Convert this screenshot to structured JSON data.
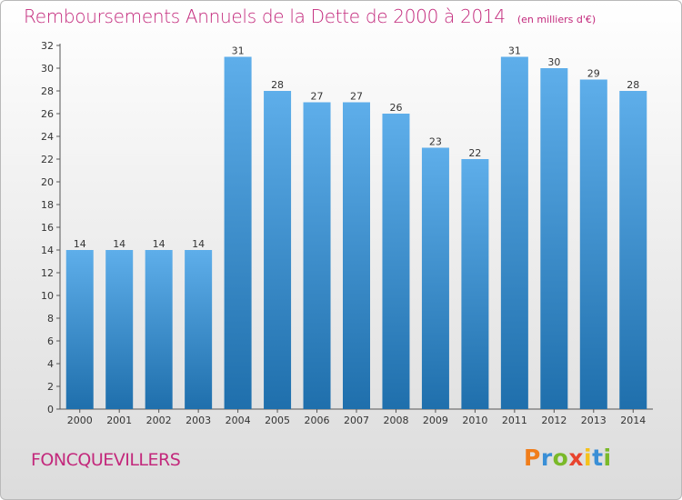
{
  "title": "Remboursements Annuels de la Dette de 2000 à 2014",
  "subtitle": "(en milliers d'€)",
  "commune": "FONCQUEVILLERS",
  "logo": {
    "letters": [
      "P",
      "r",
      "o",
      "x",
      "i",
      "t",
      "i"
    ],
    "colors": [
      "#f07d1a",
      "#3a8fd6",
      "#7ab929",
      "#e8442e",
      "#f5c21a",
      "#3a8fd6",
      "#7ab929"
    ]
  },
  "colors": {
    "bar_light": "#5eaeea",
    "bar_dark": "#1f6fac",
    "accent": "#c3297c"
  },
  "chart_data": {
    "type": "bar",
    "categories": [
      "2000",
      "2001",
      "2002",
      "2003",
      "2004",
      "2005",
      "2006",
      "2007",
      "2008",
      "2009",
      "2010",
      "2011",
      "2012",
      "2013",
      "2014"
    ],
    "values": [
      14,
      14,
      14,
      14,
      31,
      28,
      27,
      27,
      26,
      23,
      22,
      31,
      30,
      29,
      28
    ],
    "ylim": [
      0,
      32
    ],
    "yticks": [
      0,
      2,
      4,
      6,
      8,
      10,
      12,
      14,
      16,
      18,
      20,
      22,
      24,
      26,
      28,
      30,
      32
    ],
    "grid": false,
    "legend": "none"
  }
}
